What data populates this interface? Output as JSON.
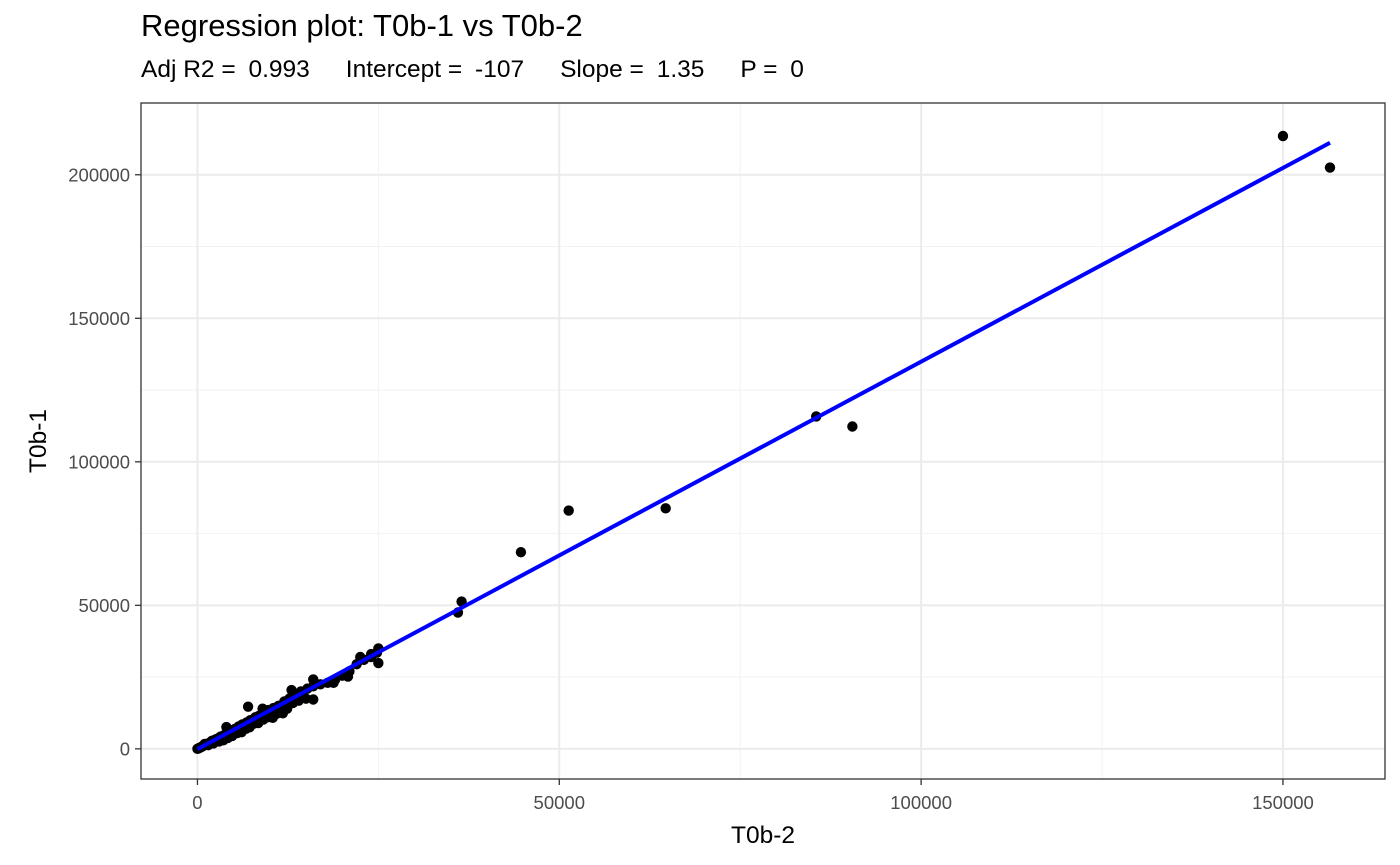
{
  "chart_data": {
    "type": "scatter",
    "title": "Regression plot: T0b-1 vs T0b-2",
    "stats": {
      "adj_r2_label": "Adj R2 = ",
      "adj_r2": "0.993",
      "intercept_label": "Intercept = ",
      "intercept": "-107",
      "slope_label": "Slope = ",
      "slope": "1.35",
      "p_label": "P = ",
      "p": "0"
    },
    "xlabel": "T0b-2",
    "ylabel": "T0b-1",
    "xlim": [
      -7800,
      164100
    ],
    "ylim": [
      -10500,
      225000
    ],
    "x_ticks": [
      0,
      50000,
      100000,
      150000
    ],
    "x_tick_labels": [
      "0",
      "50000",
      "100000",
      "150000"
    ],
    "y_ticks": [
      0,
      50000,
      100000,
      150000,
      200000
    ],
    "y_tick_labels": [
      "0",
      "50000",
      "100000",
      "150000",
      "200000"
    ],
    "grid": true,
    "point_color": "#000000",
    "fit_line": {
      "color": "#0000ff",
      "intercept": -107,
      "slope": 1.35,
      "x_range": [
        0,
        156500
      ]
    },
    "points": [
      [
        0,
        0
      ],
      [
        100,
        150
      ],
      [
        200,
        250
      ],
      [
        300,
        380
      ],
      [
        450,
        550
      ],
      [
        600,
        700
      ],
      [
        750,
        1000
      ],
      [
        900,
        1200
      ],
      [
        1050,
        1400
      ],
      [
        1200,
        1500
      ],
      [
        1400,
        1800
      ],
      [
        1600,
        2000
      ],
      [
        1800,
        2300
      ],
      [
        2000,
        2800
      ],
      [
        2300,
        3000
      ],
      [
        2600,
        3400
      ],
      [
        2900,
        3700
      ],
      [
        3200,
        4300
      ],
      [
        3500,
        4500
      ],
      [
        3900,
        5200
      ],
      [
        4300,
        5800
      ],
      [
        4800,
        6500
      ],
      [
        5200,
        7000
      ],
      [
        5700,
        7800
      ],
      [
        6200,
        8500
      ],
      [
        6800,
        9200
      ],
      [
        7300,
        10000
      ],
      [
        7900,
        10500
      ],
      [
        8500,
        11500
      ],
      [
        9200,
        12500
      ],
      [
        9800,
        13500
      ],
      [
        10500,
        14200
      ],
      [
        11200,
        15000
      ],
      [
        12000,
        16500
      ],
      [
        12700,
        17500
      ],
      [
        13500,
        18500
      ],
      [
        14300,
        20000
      ],
      [
        15200,
        21000
      ],
      [
        16000,
        21800
      ],
      [
        17000,
        22500
      ],
      [
        18000,
        23000
      ],
      [
        19000,
        24000
      ],
      [
        20000,
        25500
      ],
      [
        21000,
        27000
      ],
      [
        22000,
        29500
      ],
      [
        23000,
        31000
      ],
      [
        24000,
        32000
      ],
      [
        24800,
        33500
      ],
      [
        25000,
        35000
      ],
      [
        1000,
        1700
      ],
      [
        1500,
        1300
      ],
      [
        2200,
        1900
      ],
      [
        3000,
        2600
      ],
      [
        3600,
        3000
      ],
      [
        4200,
        3800
      ],
      [
        4800,
        4500
      ],
      [
        5500,
        5500
      ],
      [
        6100,
        5800
      ],
      [
        6700,
        7000
      ],
      [
        7200,
        7500
      ],
      [
        7800,
        8800
      ],
      [
        8400,
        9000
      ],
      [
        9100,
        10200
      ],
      [
        9700,
        11000
      ],
      [
        10400,
        10800
      ],
      [
        11000,
        12300
      ],
      [
        11800,
        12400
      ],
      [
        12400,
        14000
      ],
      [
        13200,
        16000
      ],
      [
        14000,
        16800
      ],
      [
        15000,
        17500
      ],
      [
        16000,
        17200
      ],
      [
        7000,
        14700
      ],
      [
        9000,
        14000
      ],
      [
        13000,
        20500
      ],
      [
        16000,
        24200
      ],
      [
        18800,
        23000
      ],
      [
        20800,
        25200
      ],
      [
        22500,
        32000
      ],
      [
        24000,
        33000
      ],
      [
        25000,
        29900
      ],
      [
        4000,
        7600
      ],
      [
        6000,
        6600
      ],
      [
        8000,
        11000
      ],
      [
        36000,
        47500
      ],
      [
        36500,
        51300
      ],
      [
        44700,
        68500
      ],
      [
        51300,
        83000
      ],
      [
        64700,
        83800
      ],
      [
        85500,
        115800
      ],
      [
        90500,
        112300
      ],
      [
        150000,
        213500
      ],
      [
        156500,
        202500
      ]
    ]
  }
}
